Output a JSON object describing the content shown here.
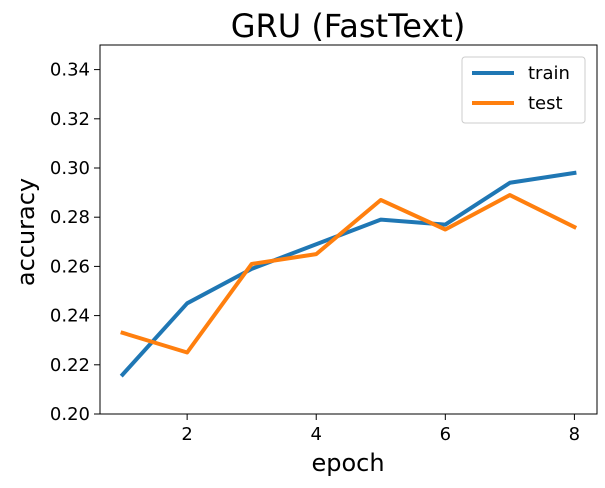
{
  "chart_data": {
    "type": "line",
    "title": "GRU (FastText)",
    "xlabel": "epoch",
    "ylabel": "accuracy",
    "xlim": [
      0.65,
      8.35
    ],
    "ylim": [
      0.2,
      0.35
    ],
    "x_ticks": [
      2,
      4,
      6,
      8
    ],
    "y_ticks": [
      0.2,
      0.22,
      0.24,
      0.26,
      0.28,
      0.3,
      0.32,
      0.34
    ],
    "x_tick_labels": [
      "2",
      "4",
      "6",
      "8"
    ],
    "y_tick_labels": [
      "0.20",
      "0.22",
      "0.24",
      "0.26",
      "0.28",
      "0.30",
      "0.32",
      "0.34"
    ],
    "grid": false,
    "legend_position": "top-right",
    "x": [
      1,
      2,
      3,
      4,
      5,
      6,
      7,
      8
    ],
    "series": [
      {
        "name": "train",
        "color": "#1f77b4",
        "values": [
          0.216,
          0.245,
          0.259,
          0.269,
          0.279,
          0.277,
          0.294,
          0.298
        ]
      },
      {
        "name": "test",
        "color": "#ff7f0e",
        "values": [
          0.233,
          0.225,
          0.261,
          0.265,
          0.287,
          0.275,
          0.289,
          0.276
        ]
      }
    ]
  }
}
